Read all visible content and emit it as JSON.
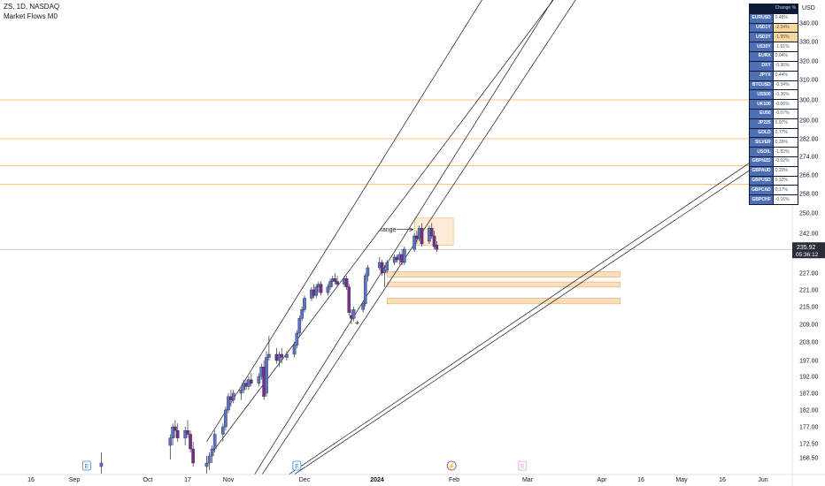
{
  "header": {
    "symbol_line": "ZS, 1D, NASDAQ",
    "indicator": "Market Flows M0"
  },
  "currency": "USD",
  "price_label": {
    "price": "235.92",
    "countdown": "05:36:12"
  },
  "annotation": {
    "text": "range"
  },
  "colors": {
    "bull": "#5b72c9",
    "bear": "#7b2d8e",
    "zone": "#f5c58a",
    "level_line": "#f5b458",
    "price_line": "#bbbbbb"
  },
  "table": {
    "head": [
      "",
      "Change %"
    ],
    "rows": [
      {
        "sym": "EURUSD",
        "val": "0.48%",
        "hl": false
      },
      {
        "sym": "USD1Y",
        "val": "-2.34%",
        "hl": true
      },
      {
        "sym": "USD3Y",
        "val": "-1.95%",
        "hl": true
      },
      {
        "sym": "US10Y",
        "val": "-1.61%",
        "hl": false
      },
      {
        "sym": "EURX",
        "val": "0.04%",
        "hl": false
      },
      {
        "sym": "DXY",
        "val": "-0.36%",
        "hl": false
      },
      {
        "sym": "JPYX",
        "val": "0.44%",
        "hl": false
      },
      {
        "sym": "BTCUSD",
        "val": "-0.34%",
        "hl": false
      },
      {
        "sym": "US500",
        "val": "-0.36%",
        "hl": false
      },
      {
        "sym": "UK100",
        "val": "-0.06%",
        "hl": false
      },
      {
        "sym": "EU50",
        "val": "-0.07%",
        "hl": false
      },
      {
        "sym": "JP225",
        "val": "0.97%",
        "hl": false
      },
      {
        "sym": "GOLD",
        "val": "0.77%",
        "hl": false
      },
      {
        "sym": "SILVER",
        "val": "0.35%",
        "hl": false
      },
      {
        "sym": "USOIL",
        "val": "-1.82%",
        "hl": false
      },
      {
        "sym": "GBPNZD",
        "val": "-0.02%",
        "hl": false
      },
      {
        "sym": "GBPAUD",
        "val": "0.20%",
        "hl": false
      },
      {
        "sym": "GBPUSD",
        "val": "0.32%",
        "hl": false
      },
      {
        "sym": "GBPCAD",
        "val": "0.17%",
        "hl": false
      },
      {
        "sym": "GBPCHF",
        "val": "-0.16%",
        "hl": false
      }
    ]
  },
  "chart_data": {
    "type": "candlestick",
    "y_ticks": [
      "340.00",
      "330.00",
      "320.00",
      "310.00",
      "300.00",
      "290.00",
      "282.00",
      "274.00",
      "266.00",
      "258.00",
      "250.00",
      "242.00",
      "227.00",
      "221.00",
      "215.00",
      "209.00",
      "203.00",
      "197.00",
      "192.00",
      "187.00",
      "182.00",
      "177.00",
      "172.50",
      "168.50"
    ],
    "x_ticks": [
      "16",
      "Sep",
      "Oct",
      "17",
      "Nov",
      "Dec",
      "2024",
      "Feb",
      "Mar",
      "Apr",
      "16",
      "May",
      "16",
      "Jun"
    ],
    "horizontal_levels": [
      300,
      282,
      270,
      262
    ],
    "last_price": 235.92,
    "range_box": {
      "from": "2024-01-19",
      "to": "2024-01-31",
      "low": 237.5,
      "high": 248
    },
    "demand_zones": [
      {
        "from": "2024-01-05",
        "to": "2024-04-08",
        "low": 225.5,
        "high": 227.5
      },
      {
        "from": "2024-01-05",
        "to": "2024-04-08",
        "low": 222,
        "high": 223.8
      },
      {
        "from": "2024-01-05",
        "to": "2024-04-08",
        "low": 216,
        "high": 218
      }
    ],
    "trend_lines": [
      {
        "p1": {
          "date": "2023-10-24",
          "price": 173
        },
        "p2": {
          "date": "2024-02-20",
          "price": 370
        }
      },
      {
        "p1": {
          "date": "2023-10-26",
          "price": 170
        },
        "p2": {
          "date": "2024-03-22",
          "price": 370
        }
      },
      {
        "p1": {
          "date": "2023-11-08",
          "price": 160
        },
        "p2": {
          "date": "2024-03-20",
          "price": 370
        }
      },
      {
        "p1": {
          "date": "2023-11-09",
          "price": 158
        },
        "p2": {
          "date": "2024-03-30",
          "price": 370
        }
      },
      {
        "p1": {
          "date": "2023-11-15",
          "price": 159
        },
        "p2": {
          "date": "2024-06-30",
          "price": 298
        }
      },
      {
        "p1": {
          "date": "2023-11-17",
          "price": 159
        },
        "p2": {
          "date": "2024-06-30",
          "price": 294
        }
      }
    ],
    "events": [
      {
        "date": "2023-09-06",
        "label": "E"
      },
      {
        "date": "2023-11-28",
        "label": "E"
      },
      {
        "date": "2024-01-31",
        "label": "⚡"
      },
      {
        "date": "2024-02-28",
        "label": "E"
      }
    ],
    "candles": [
      {
        "d": "2023-09-12",
        "o": 166,
        "h": 170,
        "l": 164,
        "c": 167
      },
      {
        "d": "2023-10-10",
        "o": 172,
        "h": 175,
        "l": 168,
        "c": 174
      },
      {
        "d": "2023-10-11",
        "o": 174,
        "h": 178,
        "l": 172,
        "c": 177
      },
      {
        "d": "2023-10-12",
        "o": 177,
        "h": 179,
        "l": 174,
        "c": 176
      },
      {
        "d": "2023-10-13",
        "o": 176,
        "h": 178,
        "l": 173,
        "c": 174
      },
      {
        "d": "2023-10-16",
        "o": 174,
        "h": 177,
        "l": 172,
        "c": 176
      },
      {
        "d": "2023-10-17",
        "o": 176,
        "h": 179,
        "l": 174,
        "c": 175
      },
      {
        "d": "2023-10-18",
        "o": 175,
        "h": 176,
        "l": 170,
        "c": 171
      },
      {
        "d": "2023-10-19",
        "o": 171,
        "h": 173,
        "l": 166,
        "c": 167
      },
      {
        "d": "2023-10-24",
        "o": 166,
        "h": 169,
        "l": 164,
        "c": 167
      },
      {
        "d": "2023-10-25",
        "o": 167,
        "h": 170,
        "l": 165,
        "c": 169
      },
      {
        "d": "2023-10-26",
        "o": 169,
        "h": 172,
        "l": 167,
        "c": 171
      },
      {
        "d": "2023-10-27",
        "o": 171,
        "h": 176,
        "l": 170,
        "c": 175
      },
      {
        "d": "2023-10-30",
        "o": 175,
        "h": 178,
        "l": 173,
        "c": 177
      },
      {
        "d": "2023-10-31",
        "o": 177,
        "h": 183,
        "l": 176,
        "c": 182
      },
      {
        "d": "2023-11-01",
        "o": 182,
        "h": 187,
        "l": 181,
        "c": 186
      },
      {
        "d": "2023-11-02",
        "o": 186,
        "h": 188,
        "l": 183,
        "c": 185
      },
      {
        "d": "2023-11-03",
        "o": 185,
        "h": 188,
        "l": 184,
        "c": 187
      },
      {
        "d": "2023-11-06",
        "o": 187,
        "h": 189,
        "l": 185,
        "c": 188
      },
      {
        "d": "2023-11-07",
        "o": 188,
        "h": 191,
        "l": 187,
        "c": 190
      },
      {
        "d": "2023-11-08",
        "o": 190,
        "h": 191,
        "l": 188,
        "c": 189
      },
      {
        "d": "2023-11-09",
        "o": 189,
        "h": 192,
        "l": 188,
        "c": 191
      },
      {
        "d": "2023-11-10",
        "o": 191,
        "h": 193,
        "l": 189,
        "c": 190
      },
      {
        "d": "2023-11-13",
        "o": 190,
        "h": 193,
        "l": 189,
        "c": 192
      },
      {
        "d": "2023-11-14",
        "o": 192,
        "h": 196,
        "l": 191,
        "c": 195
      },
      {
        "d": "2023-11-15",
        "o": 195,
        "h": 197,
        "l": 185,
        "c": 186
      },
      {
        "d": "2023-11-16",
        "o": 187,
        "h": 200,
        "l": 186,
        "c": 198
      },
      {
        "d": "2023-11-17",
        "o": 198,
        "h": 205,
        "l": 197,
        "c": 199
      },
      {
        "d": "2023-11-20",
        "o": 199,
        "h": 201,
        "l": 196,
        "c": 197
      },
      {
        "d": "2023-11-21",
        "o": 197,
        "h": 200,
        "l": 195,
        "c": 199
      },
      {
        "d": "2023-11-22",
        "o": 199,
        "h": 201,
        "l": 196,
        "c": 198
      },
      {
        "d": "2023-11-24",
        "o": 198,
        "h": 200,
        "l": 197,
        "c": 199
      },
      {
        "d": "2023-11-27",
        "o": 199,
        "h": 203,
        "l": 198,
        "c": 202
      },
      {
        "d": "2023-11-28",
        "o": 202,
        "h": 207,
        "l": 201,
        "c": 206
      },
      {
        "d": "2023-11-29",
        "o": 206,
        "h": 212,
        "l": 205,
        "c": 211
      },
      {
        "d": "2023-11-30",
        "o": 211,
        "h": 215,
        "l": 210,
        "c": 214
      },
      {
        "d": "2023-12-01",
        "o": 214,
        "h": 219,
        "l": 213,
        "c": 218
      },
      {
        "d": "2023-12-04",
        "o": 218,
        "h": 222,
        "l": 217,
        "c": 221
      },
      {
        "d": "2023-12-05",
        "o": 221,
        "h": 223,
        "l": 218,
        "c": 219
      },
      {
        "d": "2023-12-06",
        "o": 219,
        "h": 223,
        "l": 218,
        "c": 222
      },
      {
        "d": "2023-12-07",
        "o": 222,
        "h": 224,
        "l": 220,
        "c": 223
      },
      {
        "d": "2023-12-08",
        "o": 223,
        "h": 224,
        "l": 219,
        "c": 220
      },
      {
        "d": "2023-12-11",
        "o": 220,
        "h": 223,
        "l": 219,
        "c": 222
      },
      {
        "d": "2023-12-12",
        "o": 222,
        "h": 225,
        "l": 221,
        "c": 224
      },
      {
        "d": "2023-12-13",
        "o": 224,
        "h": 226,
        "l": 222,
        "c": 225
      },
      {
        "d": "2023-12-14",
        "o": 225,
        "h": 227,
        "l": 223,
        "c": 224
      },
      {
        "d": "2023-12-15",
        "o": 224,
        "h": 226,
        "l": 222,
        "c": 223
      },
      {
        "d": "2023-12-18",
        "o": 223,
        "h": 226,
        "l": 222,
        "c": 225
      },
      {
        "d": "2023-12-19",
        "o": 225,
        "h": 226,
        "l": 221,
        "c": 222
      },
      {
        "d": "2023-12-20",
        "o": 222,
        "h": 223,
        "l": 212,
        "c": 213
      },
      {
        "d": "2023-12-21",
        "o": 212,
        "h": 214,
        "l": 209,
        "c": 211
      },
      {
        "d": "2023-12-22",
        "o": 211,
        "h": 215,
        "l": 210,
        "c": 214
      },
      {
        "d": "2023-12-26",
        "o": 214,
        "h": 217,
        "l": 213,
        "c": 216
      },
      {
        "d": "2023-12-27",
        "o": 216,
        "h": 227,
        "l": 215,
        "c": 226
      },
      {
        "d": "2023-12-28",
        "o": 226,
        "h": 230,
        "l": 224,
        "c": 229
      },
      {
        "d": "2024-01-02",
        "o": 229,
        "h": 233,
        "l": 228,
        "c": 231
      },
      {
        "d": "2024-01-03",
        "o": 231,
        "h": 232,
        "l": 226,
        "c": 227
      },
      {
        "d": "2024-01-04",
        "o": 227,
        "h": 230,
        "l": 222,
        "c": 228
      },
      {
        "d": "2024-01-05",
        "o": 228,
        "h": 232,
        "l": 227,
        "c": 231
      },
      {
        "d": "2024-01-08",
        "o": 231,
        "h": 234,
        "l": 230,
        "c": 233
      },
      {
        "d": "2024-01-09",
        "o": 233,
        "h": 234,
        "l": 231,
        "c": 232
      },
      {
        "d": "2024-01-10",
        "o": 232,
        "h": 235,
        "l": 230,
        "c": 234
      },
      {
        "d": "2024-01-11",
        "o": 234,
        "h": 236,
        "l": 230,
        "c": 231
      },
      {
        "d": "2024-01-12",
        "o": 231,
        "h": 237,
        "l": 230,
        "c": 236
      },
      {
        "d": "2024-01-16",
        "o": 236,
        "h": 242,
        "l": 235,
        "c": 241
      },
      {
        "d": "2024-01-17",
        "o": 241,
        "h": 243,
        "l": 238,
        "c": 240
      },
      {
        "d": "2024-01-18",
        "o": 240,
        "h": 245,
        "l": 239,
        "c": 244
      },
      {
        "d": "2024-01-19",
        "o": 244,
        "h": 246,
        "l": 237,
        "c": 238
      },
      {
        "d": "2024-01-22",
        "o": 239,
        "h": 245,
        "l": 238,
        "c": 244
      },
      {
        "d": "2024-01-23",
        "o": 244,
        "h": 246,
        "l": 240,
        "c": 241
      },
      {
        "d": "2024-01-24",
        "o": 241,
        "h": 243,
        "l": 236,
        "c": 237
      },
      {
        "d": "2024-01-25",
        "o": 237.5,
        "h": 239,
        "l": 235,
        "c": 235.92
      }
    ]
  }
}
